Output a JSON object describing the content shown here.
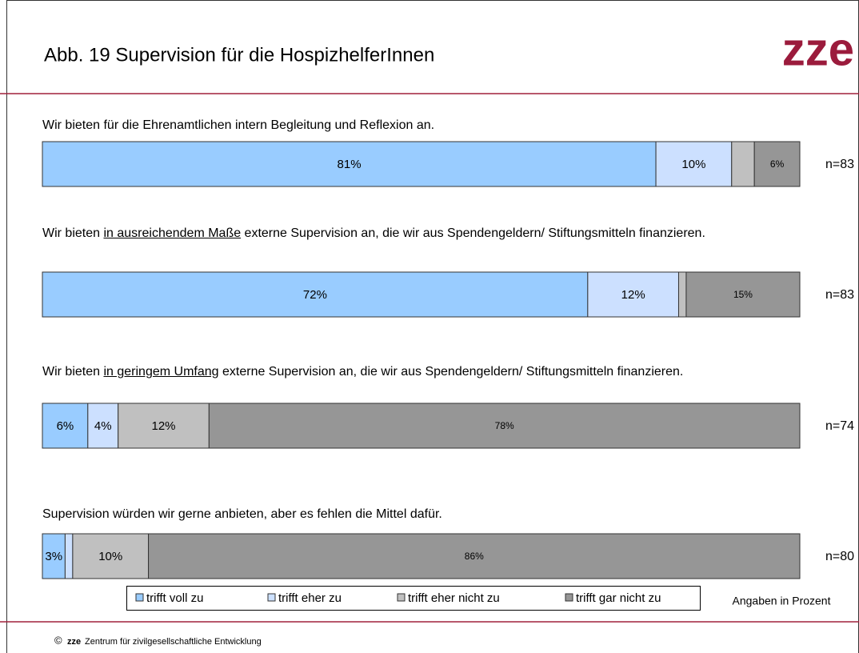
{
  "header": {
    "title": "Abb. 19 Supervision für die HospizhelferInnen",
    "logo": "zze"
  },
  "chart_data": {
    "type": "bar",
    "orientation": "horizontal",
    "stacked": true,
    "categories": [
      "Wir bieten für die Ehrenamtlichen intern Begleitung und Reflexion an.",
      "Wir bieten in ausreichendem Maße externe Supervision an, die wir aus Spendengeldern/ Stiftungsmitteln finanzieren.",
      "Wir bieten in geringem Umfang externe Supervision an, die wir aus Spendengeldern/ Stiftungsmitteln finanzieren.",
      "Supervision würden wir gerne anbieten, aber es fehlen die Mittel dafür."
    ],
    "category_emphasis": [
      null,
      "in ausreichendem Maße",
      "in geringem Umfang",
      null
    ],
    "series": [
      {
        "name": "trifft voll zu",
        "color": "#99ccff",
        "values": [
          81,
          72,
          6,
          3
        ],
        "value_labels": [
          "81%",
          "72%",
          "6%",
          "3%"
        ]
      },
      {
        "name": "trifft eher zu",
        "color": "#cce0ff",
        "values": [
          10,
          12,
          4,
          1
        ],
        "value_labels": [
          "10%",
          "12%",
          "4%",
          null
        ]
      },
      {
        "name": "trifft eher nicht zu",
        "color": "#c0c0c0",
        "values": [
          3,
          1,
          12,
          10
        ],
        "value_labels": [
          null,
          null,
          "12%",
          "10%"
        ]
      },
      {
        "name": "trifft gar nicht zu",
        "color": "#969696",
        "values": [
          6,
          15,
          78,
          86
        ],
        "value_labels": [
          "6%",
          "15%",
          "78%",
          "86%"
        ]
      }
    ],
    "sample_sizes": [
      {
        "value": 83,
        "label": "n=83"
      },
      {
        "value": 83,
        "label": "n=83"
      },
      {
        "value": 74,
        "label": "n=74"
      },
      {
        "value": 80,
        "label": "n=80"
      }
    ],
    "xlim": [
      0,
      100
    ],
    "note": "Angaben in Prozent"
  },
  "footer": {
    "symbol": "©",
    "brand": "zze",
    "text": "Zentrum für zivilgesellschaftliche Entwicklung"
  }
}
